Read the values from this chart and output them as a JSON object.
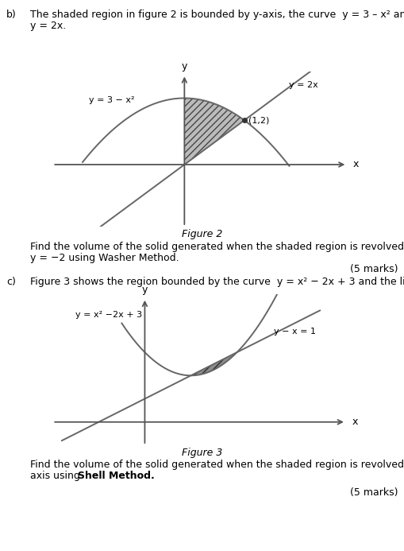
{
  "bg_color": "#ffffff",
  "text_color": "#000000",
  "part_b_label": "b)",
  "fig2_caption": "Figure 2",
  "fig2_curve_label": "y = 3 − x²",
  "fig2_line_label": "y = 2x",
  "fig2_point_label": "(1,2)",
  "fig2_question": "Find the volume of the solid generated when the shaded region is revolved about the line",
  "fig2_question2": "y = −2 using Washer Method.",
  "fig2_marks": "(5 marks)",
  "part_c_label": "c)",
  "fig3_caption": "Figure 3",
  "fig3_curve_label": "y = x² −2x + 3",
  "fig3_line_label": "y − x = 1",
  "fig3_marks": "(5 marks)",
  "hatch_pattern": "////",
  "fig2_xlim": [
    -2.2,
    2.8
  ],
  "fig2_ylim": [
    -2.8,
    4.2
  ],
  "fig3_xlim": [
    -2.0,
    4.5
  ],
  "fig3_ylim": [
    -1.0,
    5.5
  ]
}
